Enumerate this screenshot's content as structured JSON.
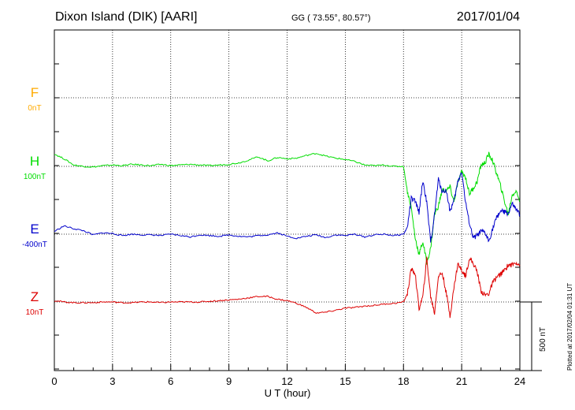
{
  "header": {
    "station": "Dixon Island (DIK)  [AARI]",
    "coords": "GG ( 73.55°,  80.57°)",
    "date": "2017/01/04"
  },
  "side_note": "Plotted at 2017/02/04 01:31  UT",
  "colors": {
    "F": "#ffaa00",
    "H": "#00dd00",
    "E": "#0000cc",
    "Z": "#dd0000"
  },
  "chart_data": {
    "type": "line",
    "xlabel": "U T (hour)",
    "xlim": [
      0,
      24
    ],
    "x_ticks": [
      0,
      3,
      6,
      9,
      12,
      15,
      18,
      21,
      24
    ],
    "scale_bar_label": "500 nT",
    "series": [
      {
        "name": "F",
        "base_label": "0nT",
        "x": [],
        "values": []
      },
      {
        "name": "H",
        "base_label": "100nT",
        "x": [
          0,
          0.5,
          1,
          1.5,
          2,
          2.5,
          3,
          3.5,
          4,
          4.5,
          5,
          5.5,
          6,
          6.5,
          7,
          7.5,
          8,
          8.5,
          9,
          9.5,
          10,
          10.5,
          11,
          11.5,
          12,
          12.5,
          13,
          13.5,
          14,
          14.5,
          15,
          15.5,
          16,
          16.5,
          17,
          17.5,
          18,
          18.2,
          18.4,
          18.6,
          18.8,
          19.0,
          19.2,
          19.4,
          19.6,
          19.8,
          20.0,
          20.2,
          20.4,
          20.6,
          20.8,
          21.0,
          21.2,
          21.4,
          21.6,
          21.8,
          22.0,
          22.2,
          22.4,
          22.6,
          22.8,
          23.0,
          23.2,
          23.4,
          23.6,
          23.8,
          24.0
        ],
        "values": [
          90,
          55,
          10,
          0,
          -5,
          5,
          10,
          5,
          15,
          10,
          5,
          15,
          5,
          10,
          15,
          10,
          5,
          10,
          15,
          25,
          45,
          70,
          40,
          65,
          55,
          60,
          80,
          95,
          75,
          60,
          50,
          35,
          10,
          5,
          10,
          0,
          0,
          -180,
          -300,
          -520,
          -640,
          -550,
          -700,
          -600,
          -350,
          -290,
          -170,
          -180,
          -150,
          -260,
          -120,
          -40,
          -80,
          -200,
          -160,
          -110,
          10,
          25,
          90,
          40,
          -50,
          -140,
          -250,
          -350,
          -210,
          -180,
          -250
        ]
      },
      {
        "name": "E",
        "base_label": "-400nT",
        "x": [
          0,
          0.5,
          1,
          1.5,
          2,
          2.5,
          3,
          3.5,
          4,
          4.5,
          5,
          5.5,
          6,
          6.5,
          7,
          7.5,
          8,
          8.5,
          9,
          9.5,
          10,
          10.5,
          11,
          11.5,
          12,
          12.5,
          13,
          13.5,
          14,
          14.5,
          15,
          15.5,
          16,
          16.5,
          17,
          17.5,
          18,
          18.2,
          18.4,
          18.6,
          18.8,
          19.0,
          19.2,
          19.4,
          19.6,
          19.8,
          20.0,
          20.2,
          20.4,
          20.6,
          20.8,
          21.0,
          21.2,
          21.4,
          21.6,
          21.8,
          22.0,
          22.2,
          22.4,
          22.6,
          22.8,
          23.0,
          23.2,
          23.4,
          23.6,
          23.8,
          24.0
        ],
        "values": [
          20,
          60,
          40,
          25,
          -5,
          10,
          5,
          -10,
          0,
          -5,
          -5,
          -10,
          0,
          -10,
          -20,
          -5,
          -10,
          -15,
          -5,
          -15,
          -20,
          -10,
          -5,
          10,
          -15,
          -30,
          -15,
          -5,
          -25,
          -5,
          -10,
          0,
          -20,
          -5,
          0,
          -10,
          0,
          50,
          260,
          240,
          160,
          390,
          230,
          -60,
          140,
          400,
          310,
          320,
          170,
          240,
          380,
          460,
          230,
          80,
          -30,
          -10,
          20,
          10,
          -50,
          40,
          120,
          170,
          160,
          150,
          220,
          180,
          140
        ]
      },
      {
        "name": "Z",
        "base_label": "10nT",
        "x": [
          0,
          0.5,
          1,
          1.5,
          2,
          2.5,
          3,
          3.5,
          4,
          4.5,
          5,
          5.5,
          6,
          6.5,
          7,
          7.5,
          8,
          8.5,
          9,
          9.5,
          10,
          10.5,
          11,
          11.5,
          12,
          12.5,
          13,
          13.5,
          14,
          14.5,
          15,
          15.5,
          16,
          16.5,
          17,
          17.5,
          18,
          18.2,
          18.4,
          18.6,
          18.8,
          19.0,
          19.2,
          19.4,
          19.6,
          19.8,
          20.0,
          20.2,
          20.4,
          20.6,
          20.8,
          21.0,
          21.2,
          21.4,
          21.6,
          21.8,
          22.0,
          22.2,
          22.4,
          22.6,
          22.8,
          23.0,
          23.2,
          23.4,
          23.6,
          23.8,
          24.0
        ],
        "values": [
          10,
          0,
          -5,
          -5,
          -5,
          0,
          0,
          -5,
          -5,
          0,
          0,
          -5,
          0,
          0,
          0,
          0,
          5,
          10,
          15,
          20,
          30,
          40,
          40,
          20,
          10,
          -10,
          -40,
          -80,
          -75,
          -60,
          -45,
          -40,
          -30,
          -25,
          -15,
          -10,
          0,
          60,
          240,
          210,
          -50,
          40,
          320,
          40,
          -80,
          190,
          210,
          70,
          -100,
          100,
          280,
          230,
          190,
          320,
          280,
          220,
          80,
          50,
          60,
          140,
          180,
          200,
          230,
          270,
          270,
          290,
          270
        ]
      }
    ]
  }
}
